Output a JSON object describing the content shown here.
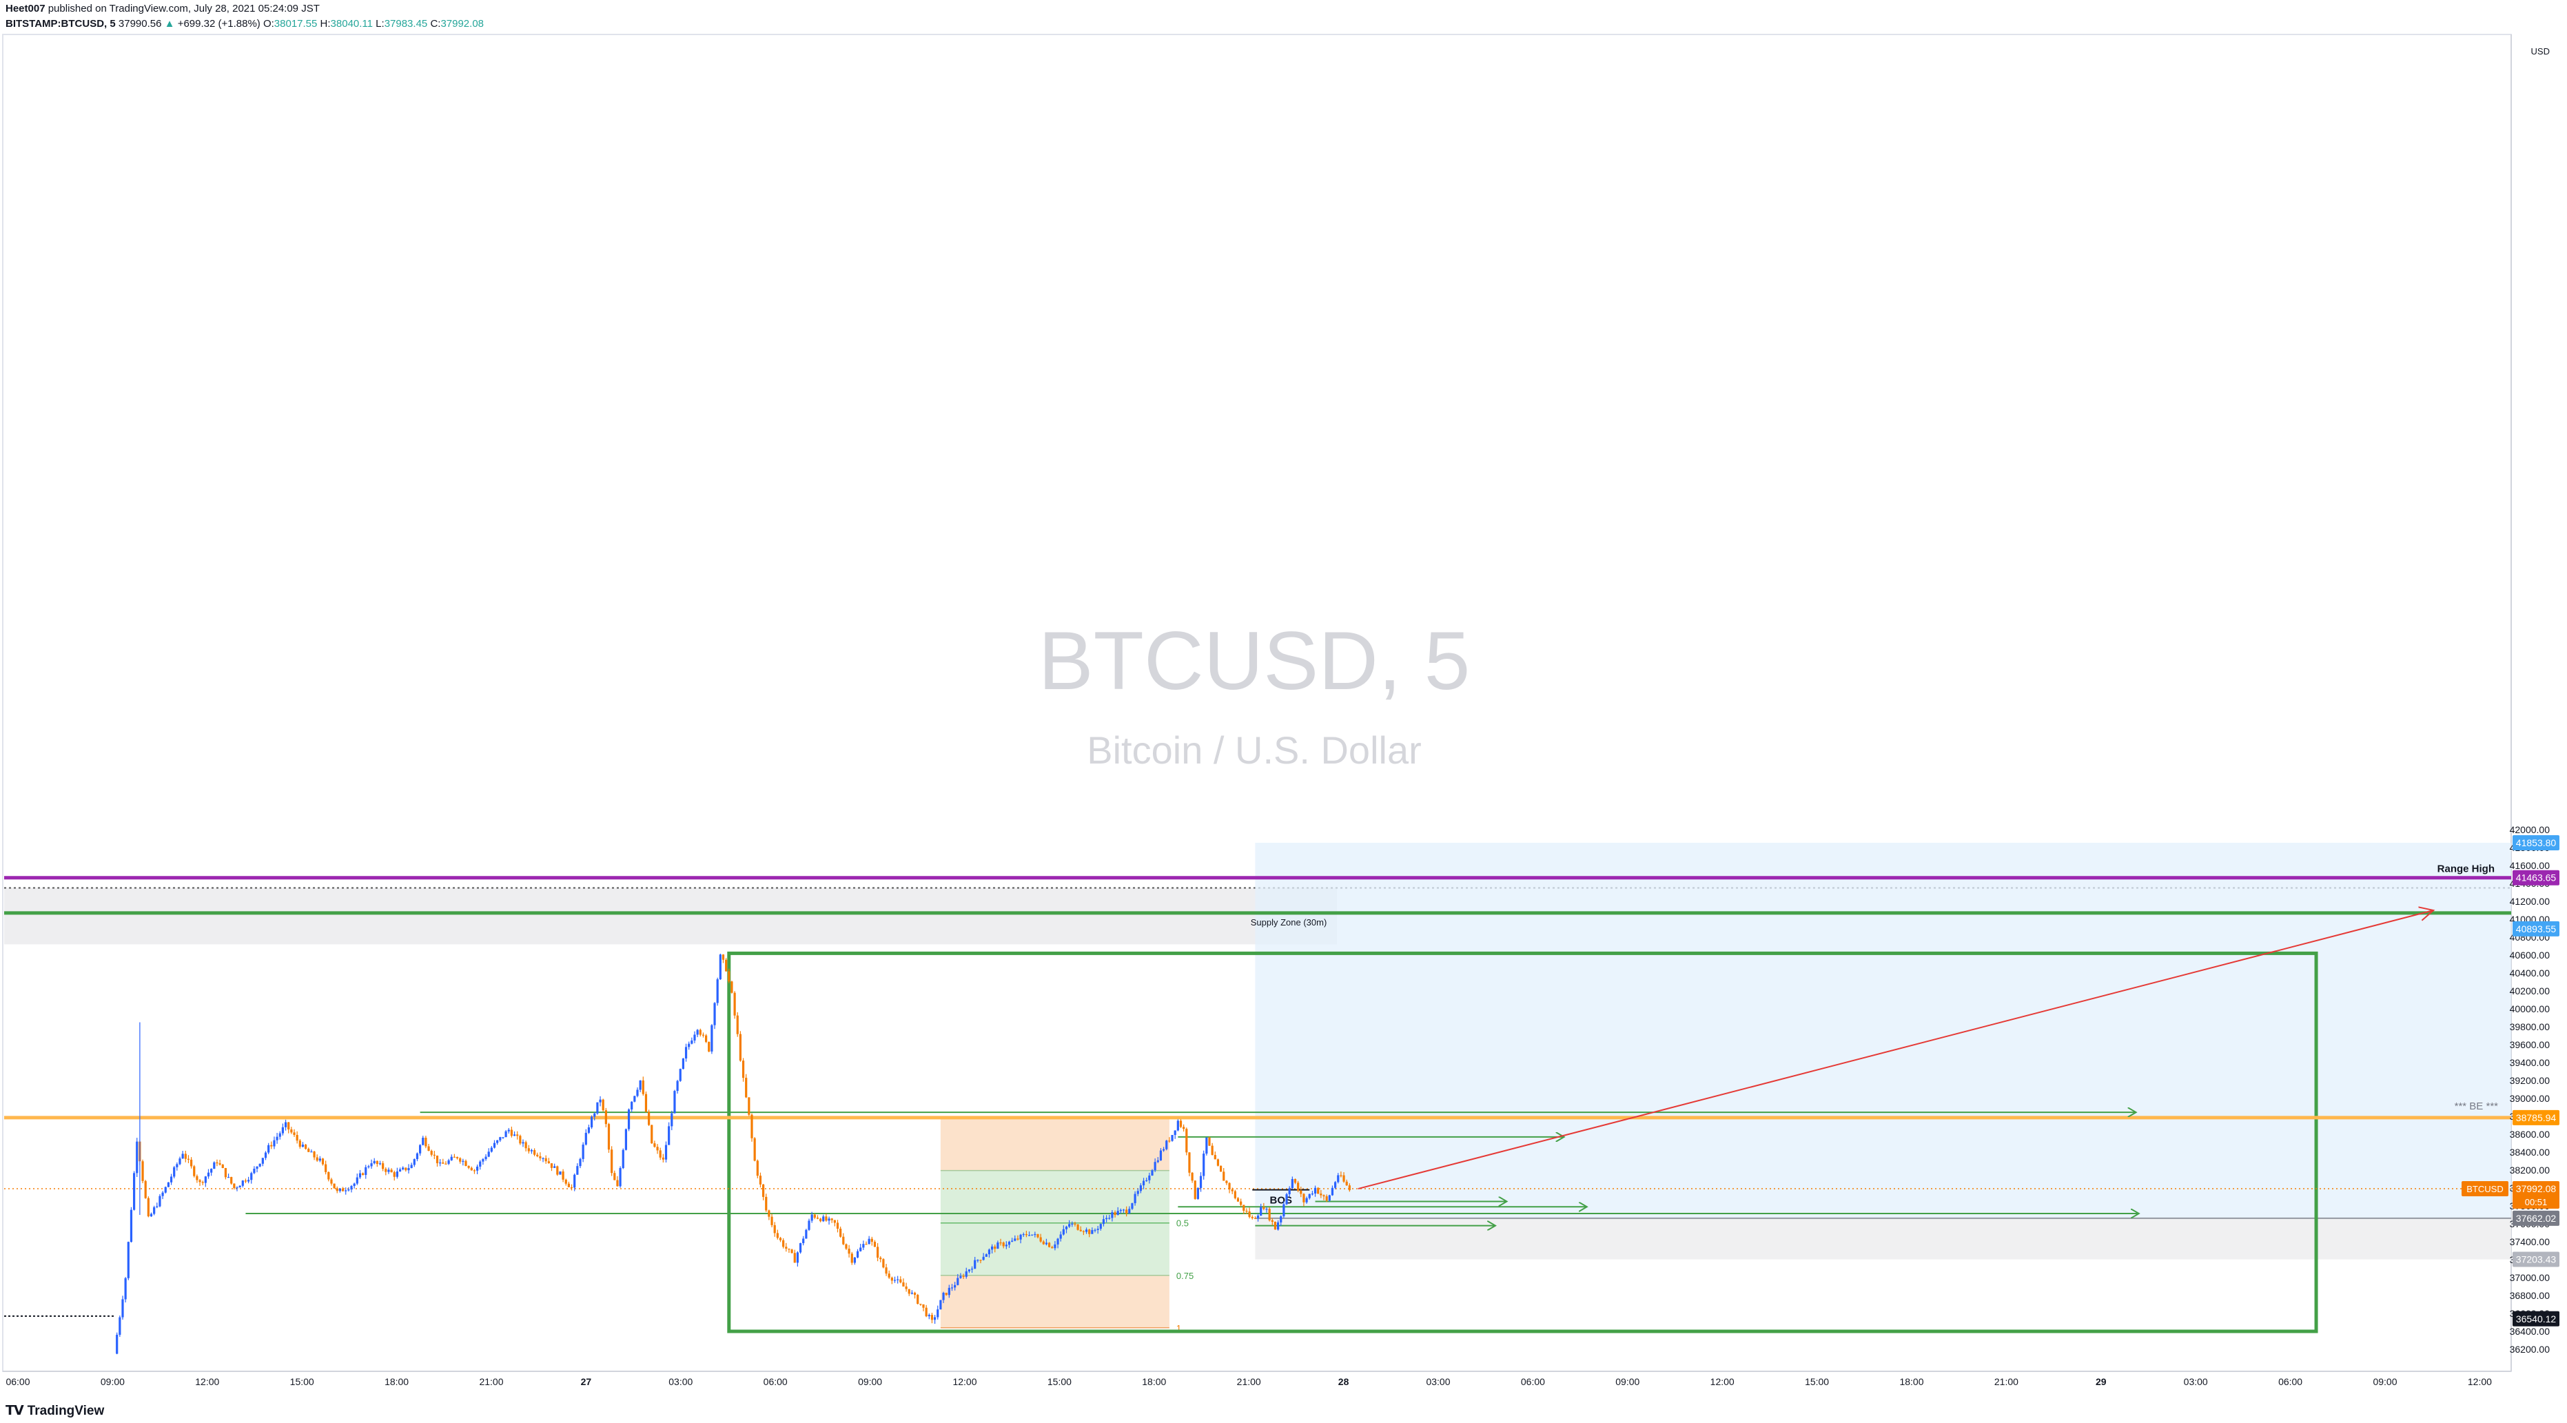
{
  "header": {
    "author": "Heet007",
    "published": "published on TradingView.com, July 28, 2021 05:24:09 JST",
    "symbol": "BITSTAMP:BTCUSD, 5",
    "last": "37990.56",
    "change": "+699.32 (+1.88%)",
    "o_label": "O:",
    "o": "38017.55",
    "h_label": "H:",
    "h": "38040.11",
    "l_label": "L:",
    "l": "37983.45",
    "c_label": "C:",
    "c": "37992.08"
  },
  "watermark": {
    "symbol": "BTCUSD, 5",
    "name": "Bitcoin / U.S. Dollar"
  },
  "footer": {
    "logo_text": "TradingView"
  },
  "annotations": {
    "range_high": "Range High",
    "supply_zone": "Supply Zone (30m)",
    "be": "*** BE ***",
    "bos": "BOS",
    "fib_05": "0.5",
    "fib_075": "0.75",
    "fib_1": "1"
  },
  "colors": {
    "up": "#2962ff",
    "down": "#f57c00",
    "purple": "#9c27b0",
    "green": "#43a047",
    "orange": "#ffb74d",
    "red": "#e53935",
    "blue_zone": "#e3f0fc",
    "gray_zone": "#ececee"
  },
  "chart_data": {
    "type": "candlestick",
    "price_unit": "USD",
    "y_range": [
      36100,
      42200
    ],
    "y_ticks": [
      36200,
      36400,
      36600,
      36800,
      37000,
      37200,
      37400,
      37600,
      37800,
      38000,
      38200,
      38400,
      38600,
      38800,
      39000,
      39200,
      39400,
      39600,
      39800,
      40000,
      40200,
      40400,
      40600,
      40800,
      41000,
      41200,
      41400,
      41600,
      41800,
      42000
    ],
    "x_ticks": [
      "06:00",
      "09:00",
      "12:00",
      "15:00",
      "18:00",
      "21:00",
      "27",
      "03:00",
      "06:00",
      "09:00",
      "12:00",
      "15:00",
      "18:00",
      "21:00",
      "28",
      "03:00",
      "06:00",
      "09:00",
      "12:00",
      "15:00",
      "18:00",
      "21:00",
      "29",
      "03:00",
      "06:00",
      "09:00",
      "12:00"
    ],
    "price_labels": [
      {
        "value": 41853.8,
        "text": "41853.80",
        "color": "#42a5f5"
      },
      {
        "value": 41463.65,
        "text": "41463.65",
        "color": "#9c27b0"
      },
      {
        "value": 40893.55,
        "text": "40893.55",
        "color": "#42a5f5"
      },
      {
        "value": 38785.94,
        "text": "38785.94",
        "color": "#ff9800"
      },
      {
        "value": 37992.08,
        "text": "37992.08",
        "color": "#f57c00",
        "sub": "00:51",
        "tag": "BTCUSD"
      },
      {
        "value": 37662.02,
        "text": "37662.02",
        "color": "#787b86"
      },
      {
        "value": 37203.43,
        "text": "37203.43",
        "color": "#b2b5be"
      },
      {
        "value": 36540.12,
        "text": "36540.12",
        "color": "#131722"
      }
    ],
    "levels": {
      "range_high": 41463.65,
      "supply_zone_line": 41070,
      "supply_zone_top": 41350,
      "supply_zone_bottom": 40720,
      "be": 38785.94,
      "last_price": 37992.08,
      "position_entry": 37662.02,
      "position_target": 41853.8,
      "position_stop": 37203.43
    },
    "series": [
      {
        "name": "BTCUSD 5m (approximate path)",
        "points": [
          [
            38,
            36150
          ],
          [
            42,
            37000
          ],
          [
            46,
            38550
          ],
          [
            50,
            37650
          ],
          [
            56,
            38000
          ],
          [
            62,
            38400
          ],
          [
            68,
            38050
          ],
          [
            74,
            38300
          ],
          [
            80,
            38000
          ],
          [
            86,
            38150
          ],
          [
            92,
            38450
          ],
          [
            98,
            38700
          ],
          [
            104,
            38450
          ],
          [
            110,
            38300
          ],
          [
            116,
            37950
          ],
          [
            122,
            38050
          ],
          [
            128,
            38300
          ],
          [
            136,
            38150
          ],
          [
            142,
            38250
          ],
          [
            146,
            38550
          ],
          [
            152,
            38250
          ],
          [
            158,
            38350
          ],
          [
            164,
            38200
          ],
          [
            170,
            38450
          ],
          [
            176,
            38650
          ],
          [
            182,
            38450
          ],
          [
            188,
            38350
          ],
          [
            194,
            38150
          ],
          [
            198,
            38000
          ],
          [
            204,
            38700
          ],
          [
            208,
            39000
          ],
          [
            210,
            38700
          ],
          [
            212,
            38150
          ],
          [
            214,
            38000
          ],
          [
            218,
            38900
          ],
          [
            222,
            39200
          ],
          [
            226,
            38500
          ],
          [
            230,
            38300
          ],
          [
            234,
            39050
          ],
          [
            238,
            39550
          ],
          [
            242,
            39800
          ],
          [
            246,
            39550
          ],
          [
            248,
            40100
          ],
          [
            250,
            40580
          ],
          [
            252,
            40450
          ],
          [
            254,
            40150
          ],
          [
            256,
            39700
          ],
          [
            258,
            39200
          ],
          [
            260,
            38800
          ],
          [
            262,
            38300
          ],
          [
            266,
            37750
          ],
          [
            270,
            37450
          ],
          [
            276,
            37200
          ],
          [
            282,
            37700
          ],
          [
            290,
            37600
          ],
          [
            296,
            37200
          ],
          [
            302,
            37450
          ],
          [
            308,
            37050
          ],
          [
            312,
            36950
          ],
          [
            316,
            36850
          ],
          [
            320,
            36700
          ],
          [
            324,
            36500
          ],
          [
            328,
            36800
          ],
          [
            334,
            37000
          ],
          [
            340,
            37200
          ],
          [
            346,
            37350
          ],
          [
            352,
            37400
          ],
          [
            358,
            37500
          ],
          [
            366,
            37350
          ],
          [
            372,
            37600
          ],
          [
            380,
            37500
          ],
          [
            386,
            37700
          ],
          [
            392,
            37750
          ],
          [
            398,
            38050
          ],
          [
            404,
            38400
          ],
          [
            408,
            38600
          ],
          [
            410,
            38750
          ],
          [
            412,
            38650
          ],
          [
            414,
            38200
          ],
          [
            416,
            37900
          ],
          [
            418,
            38150
          ],
          [
            420,
            38550
          ],
          [
            422,
            38350
          ],
          [
            426,
            38100
          ],
          [
            432,
            37800
          ],
          [
            436,
            37650
          ],
          [
            440,
            37800
          ],
          [
            444,
            37550
          ],
          [
            446,
            37700
          ],
          [
            448,
            37950
          ],
          [
            450,
            38100
          ],
          [
            454,
            37850
          ],
          [
            458,
            38000
          ],
          [
            462,
            37850
          ],
          [
            466,
            38150
          ],
          [
            470,
            37980
          ]
        ]
      }
    ],
    "range_box": {
      "x": [
        252,
        807
      ],
      "y": [
        36400,
        40620
      ]
    },
    "fib_retracement": {
      "x": [
        326,
        406
      ],
      "top": 38780,
      "bottom": 36440,
      "levels": [
        {
          "ratio": 0.5,
          "price": 37610
        },
        {
          "ratio": 0.75,
          "price": 37025
        },
        {
          "ratio": 1,
          "price": 36440
        }
      ]
    },
    "long_position": {
      "x": [
        436,
        888
      ],
      "entry": 37662.02,
      "target": 41853.8,
      "stop": 37203.43
    },
    "projection_arrow": {
      "from": [
        472,
        37992
      ],
      "to": [
        848,
        41100
      ]
    },
    "horizontal_rays": [
      {
        "x": [
          144,
          744
        ],
        "y": 38845
      },
      {
        "x": [
          83,
          745
        ],
        "y": 37715
      },
      {
        "x": [
          409,
          544
        ],
        "y": 38570
      },
      {
        "x": [
          409,
          552
        ],
        "y": 37790
      },
      {
        "x": [
          436,
          520
        ],
        "y": 37580
      },
      {
        "x": [
          457,
          524
        ],
        "y": 37850
      }
    ]
  }
}
